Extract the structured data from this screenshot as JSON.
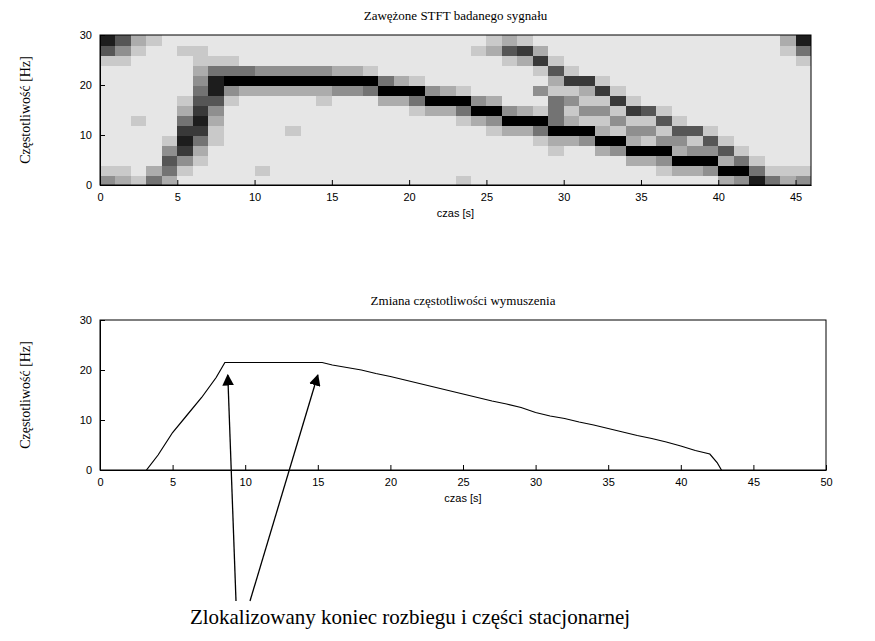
{
  "chart_data": [
    {
      "type": "heatmap",
      "title": "Zawężone STFT badanego sygnału",
      "x_label": "czas [s]",
      "y_label": "Częstotliwość [Hz]",
      "color": "#000000",
      "xlim": [
        0,
        46
      ],
      "xticks": [
        0,
        5,
        10,
        15,
        20,
        25,
        30,
        35,
        40,
        45
      ],
      "ylim": [
        0,
        30
      ],
      "yticks": [
        0,
        10,
        20,
        30
      ],
      "xbins": [
        0,
        1,
        2,
        3,
        4,
        5,
        6,
        7,
        8,
        9,
        10,
        11,
        12,
        13,
        14,
        15,
        16,
        17,
        18,
        19,
        20,
        21,
        22,
        23,
        24,
        25,
        26,
        27,
        28,
        29,
        30,
        31,
        32,
        33,
        34,
        35,
        36,
        37,
        38,
        39,
        40,
        41,
        42,
        43,
        44,
        45,
        46
      ],
      "ybins": [
        0,
        2,
        4,
        6,
        8,
        10,
        12,
        14,
        16,
        18,
        20,
        22,
        24,
        26,
        28,
        30
      ],
      "z": [
        [
          4,
          2,
          1,
          1,
          1,
          1,
          1,
          1,
          1,
          1,
          1,
          1,
          2,
          6,
          8
        ],
        [
          3,
          2,
          1,
          1,
          1,
          1,
          1,
          1,
          1,
          1,
          1,
          1,
          2,
          4,
          6
        ],
        [
          2,
          1,
          1,
          1,
          1,
          1,
          2,
          1,
          1,
          1,
          1,
          1,
          1,
          2,
          3
        ],
        [
          5,
          3,
          1,
          1,
          1,
          1,
          1,
          1,
          1,
          1,
          1,
          1,
          1,
          1,
          2
        ],
        [
          3,
          5,
          6,
          4,
          2,
          1,
          1,
          1,
          1,
          1,
          1,
          1,
          1,
          1,
          1
        ],
        [
          1,
          2,
          4,
          7,
          8,
          7,
          5,
          3,
          2,
          1,
          1,
          1,
          1,
          2,
          1
        ],
        [
          1,
          1,
          2,
          3,
          5,
          7,
          8,
          7,
          6,
          5,
          4,
          3,
          2,
          2,
          1
        ],
        [
          1,
          1,
          1,
          1,
          2,
          2,
          3,
          4,
          6,
          8,
          8,
          5,
          2,
          1,
          1
        ],
        [
          1,
          1,
          1,
          1,
          1,
          1,
          1,
          1,
          2,
          4,
          9,
          5,
          2,
          1,
          1
        ],
        [
          1,
          1,
          1,
          1,
          1,
          1,
          1,
          1,
          1,
          3,
          9,
          5,
          1,
          1,
          1
        ],
        [
          1,
          2,
          1,
          1,
          1,
          1,
          1,
          1,
          1,
          3,
          9,
          4,
          1,
          1,
          1
        ],
        [
          1,
          1,
          1,
          1,
          1,
          1,
          1,
          1,
          1,
          3,
          9,
          4,
          1,
          1,
          1
        ],
        [
          1,
          1,
          1,
          1,
          1,
          2,
          1,
          1,
          1,
          3,
          9,
          4,
          1,
          1,
          1
        ],
        [
          1,
          1,
          1,
          1,
          1,
          1,
          1,
          1,
          1,
          3,
          9,
          4,
          1,
          1,
          1
        ],
        [
          1,
          1,
          1,
          1,
          1,
          1,
          1,
          1,
          2,
          3,
          9,
          4,
          1,
          1,
          1
        ],
        [
          1,
          1,
          1,
          1,
          1,
          1,
          1,
          1,
          1,
          4,
          9,
          3,
          1,
          1,
          1
        ],
        [
          1,
          1,
          1,
          1,
          1,
          1,
          1,
          1,
          1,
          4,
          9,
          3,
          1,
          1,
          1
        ],
        [
          1,
          1,
          1,
          1,
          1,
          1,
          1,
          1,
          1,
          5,
          9,
          2,
          1,
          1,
          1
        ],
        [
          1,
          1,
          1,
          1,
          1,
          1,
          1,
          1,
          3,
          9,
          5,
          1,
          1,
          1,
          1
        ],
        [
          1,
          1,
          1,
          1,
          1,
          1,
          1,
          1,
          3,
          9,
          3,
          1,
          1,
          1,
          1
        ],
        [
          1,
          1,
          1,
          1,
          1,
          1,
          1,
          2,
          5,
          9,
          2,
          1,
          1,
          1,
          1
        ],
        [
          1,
          1,
          1,
          1,
          1,
          1,
          1,
          3,
          9,
          4,
          1,
          1,
          1,
          1,
          1
        ],
        [
          1,
          1,
          1,
          1,
          1,
          1,
          1,
          3,
          9,
          3,
          1,
          1,
          1,
          1,
          1
        ],
        [
          2,
          1,
          1,
          1,
          1,
          1,
          2,
          5,
          9,
          2,
          1,
          1,
          1,
          1,
          1
        ],
        [
          1,
          1,
          1,
          1,
          1,
          1,
          3,
          9,
          4,
          1,
          1,
          1,
          1,
          2,
          1
        ],
        [
          1,
          1,
          1,
          1,
          1,
          2,
          4,
          9,
          3,
          1,
          1,
          1,
          1,
          3,
          2
        ],
        [
          1,
          1,
          1,
          1,
          1,
          3,
          9,
          4,
          1,
          1,
          1,
          1,
          2,
          6,
          3
        ],
        [
          1,
          1,
          1,
          1,
          1,
          3,
          9,
          3,
          1,
          1,
          1,
          1,
          3,
          7,
          2
        ],
        [
          1,
          1,
          1,
          1,
          2,
          5,
          9,
          2,
          1,
          4,
          1,
          2,
          7,
          3,
          1
        ],
        [
          1,
          1,
          1,
          2,
          3,
          9,
          5,
          5,
          5,
          2,
          3,
          6,
          2,
          1,
          1
        ],
        [
          1,
          1,
          1,
          1,
          3,
          9,
          3,
          2,
          4,
          2,
          7,
          2,
          1,
          1,
          1
        ],
        [
          1,
          1,
          1,
          1,
          4,
          9,
          2,
          4,
          2,
          3,
          7,
          1,
          1,
          1,
          1
        ],
        [
          1,
          1,
          1,
          3,
          9,
          3,
          2,
          4,
          2,
          7,
          2,
          1,
          1,
          1,
          1
        ],
        [
          1,
          1,
          1,
          4,
          9,
          2,
          4,
          2,
          7,
          2,
          1,
          1,
          1,
          1,
          1
        ],
        [
          1,
          1,
          3,
          9,
          3,
          4,
          2,
          7,
          2,
          1,
          1,
          1,
          1,
          1,
          1
        ],
        [
          1,
          1,
          3,
          9,
          2,
          4,
          2,
          6,
          1,
          1,
          1,
          1,
          1,
          1,
          1
        ],
        [
          1,
          2,
          4,
          9,
          4,
          2,
          6,
          2,
          1,
          1,
          1,
          1,
          1,
          1,
          1
        ],
        [
          1,
          3,
          9,
          3,
          4,
          6,
          2,
          1,
          1,
          1,
          1,
          1,
          1,
          1,
          1
        ],
        [
          1,
          3,
          9,
          4,
          2,
          6,
          1,
          1,
          1,
          1,
          1,
          1,
          1,
          1,
          1
        ],
        [
          1,
          4,
          9,
          4,
          6,
          2,
          1,
          1,
          1,
          1,
          1,
          1,
          1,
          1,
          1
        ],
        [
          3,
          9,
          3,
          6,
          2,
          1,
          1,
          1,
          1,
          1,
          1,
          1,
          1,
          1,
          1
        ],
        [
          4,
          9,
          5,
          2,
          1,
          1,
          1,
          1,
          1,
          1,
          1,
          1,
          1,
          1,
          1
        ],
        [
          8,
          5,
          2,
          1,
          1,
          1,
          1,
          1,
          1,
          1,
          1,
          1,
          1,
          1,
          1
        ],
        [
          5,
          2,
          1,
          1,
          1,
          1,
          1,
          1,
          1,
          1,
          1,
          1,
          1,
          1,
          1
        ],
        [
          3,
          2,
          1,
          1,
          1,
          1,
          1,
          1,
          1,
          1,
          1,
          1,
          1,
          2,
          3
        ],
        [
          4,
          2,
          1,
          1,
          1,
          1,
          1,
          1,
          1,
          1,
          1,
          1,
          2,
          5,
          8
        ]
      ]
    },
    {
      "type": "line",
      "title": "Zmiana częstotliwości wymuszenia",
      "x_label": "czas [s]",
      "y_label": "Częstotliwość [Hz]",
      "color": "#000000",
      "xlim": [
        0,
        50
      ],
      "xticks": [
        0,
        5,
        10,
        15,
        20,
        25,
        30,
        35,
        40,
        45,
        50
      ],
      "ylim": [
        0,
        30
      ],
      "yticks": [
        0,
        10,
        20,
        30
      ],
      "x": [
        3.2,
        4,
        5,
        6,
        7,
        8,
        8.6,
        10,
        12,
        14,
        15.3,
        16,
        17,
        18,
        19,
        20,
        21,
        22,
        23,
        24,
        25,
        26,
        27,
        28,
        29,
        30,
        31,
        32,
        33,
        34,
        35,
        36,
        37,
        38,
        39,
        40,
        41,
        42,
        42.5,
        42.8
      ],
      "values": [
        0,
        3,
        7.5,
        11,
        14.5,
        18.5,
        21.5,
        21.5,
        21.5,
        21.5,
        21.5,
        21,
        20.5,
        20,
        19.3,
        18.7,
        18,
        17.3,
        16.6,
        15.9,
        15.2,
        14.5,
        13.8,
        13.2,
        12.5,
        11.5,
        10.8,
        10.3,
        9.6,
        9,
        8.3,
        7.6,
        6.9,
        6.3,
        5.6,
        4.8,
        3.9,
        3.2,
        1.5,
        0
      ],
      "annotations": [
        {
          "text": "Zlokalizowany koniec rozbiegu i części stacjonarnej",
          "x": [
            8.8,
            15
          ],
          "y": [
            19,
            19
          ]
        }
      ]
    }
  ]
}
